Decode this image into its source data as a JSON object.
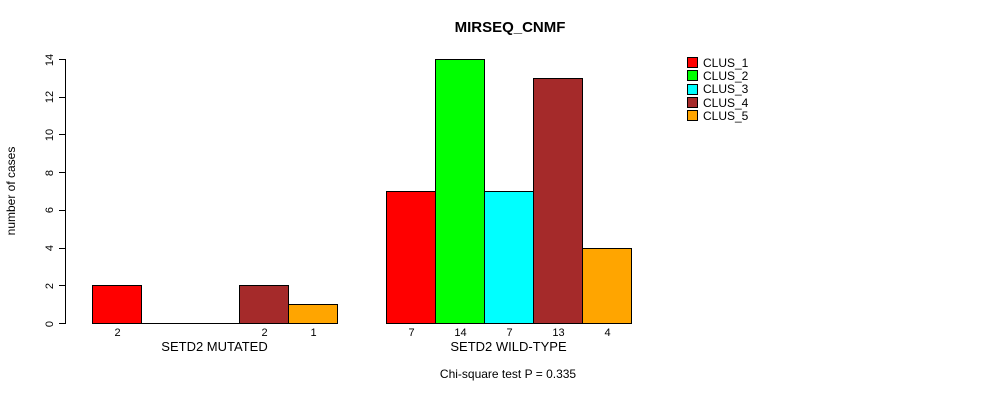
{
  "chart_data": {
    "type": "bar",
    "title": "MIRSEQ_CNMF",
    "ylabel": "number of cases",
    "xlabel": "",
    "ylim": [
      0,
      14
    ],
    "yticks": [
      0,
      2,
      4,
      6,
      8,
      10,
      12,
      14
    ],
    "grid": false,
    "background": "#FFFFFF",
    "bar_border_color": "#000000",
    "legend_position": "right-outside",
    "legend": [
      {
        "name": "CLUS_1",
        "color": "#FF0000"
      },
      {
        "name": "CLUS_2",
        "color": "#00FF00"
      },
      {
        "name": "CLUS_3",
        "color": "#00FFFF"
      },
      {
        "name": "CLUS_4",
        "color": "#A52A2A"
      },
      {
        "name": "CLUS_5",
        "color": "#FFA500"
      }
    ],
    "groups": [
      {
        "label": "SETD2 MUTATED",
        "values": [
          2,
          0,
          0,
          2,
          1
        ],
        "bar_labels": [
          "2",
          "",
          "",
          "2",
          "1"
        ]
      },
      {
        "label": "SETD2 WILD-TYPE",
        "values": [
          7,
          14,
          7,
          13,
          4
        ],
        "bar_labels": [
          "7",
          "14",
          "7",
          "13",
          "4"
        ]
      }
    ],
    "annotation": "Chi-square test P = 0.335"
  }
}
